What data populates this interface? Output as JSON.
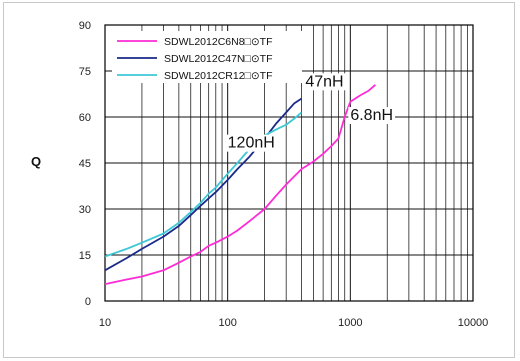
{
  "chart_data": {
    "type": "line",
    "ylabel": "Q",
    "xscale": "log",
    "xlim": [
      10,
      10000
    ],
    "ylim": [
      0,
      90
    ],
    "x_ticks": [
      10,
      100,
      1000,
      10000
    ],
    "x_tick_labels": [
      "10",
      "100",
      "1000",
      "10000"
    ],
    "y_ticks": [
      0,
      15,
      30,
      45,
      60,
      75,
      90
    ],
    "y_tick_labels": [
      "0",
      "15",
      "30",
      "45",
      "60",
      "75",
      "90"
    ],
    "grid": true,
    "legend_position": "top-left",
    "series": [
      {
        "name": "SDWL2012C6N8□⊙TF",
        "color": "#ff2bd6",
        "x": [
          10,
          15,
          20,
          30,
          40,
          50,
          60,
          70,
          80,
          100,
          120,
          150,
          200,
          250,
          300,
          400,
          500,
          600,
          700,
          800,
          900,
          1000,
          1200,
          1400,
          1600
        ],
        "y": [
          5.5,
          7,
          8,
          10,
          12.5,
          14.5,
          16,
          18,
          19,
          21,
          23,
          26,
          30,
          34.5,
          38,
          43,
          45.5,
          48,
          50.5,
          53,
          60,
          65,
          67,
          68.5,
          70.5
        ]
      },
      {
        "name": "SDWL2012C47N□⊙TF",
        "color": "#1a2a8a",
        "x": [
          10,
          15,
          20,
          30,
          40,
          50,
          60,
          70,
          80,
          100,
          120,
          150,
          200,
          250,
          300,
          350,
          400
        ],
        "y": [
          10,
          14,
          17,
          21,
          24.5,
          28,
          31,
          33.5,
          35.5,
          39.5,
          43,
          47,
          53,
          58,
          61.5,
          64.5,
          66
        ]
      },
      {
        "name": "SDWL2012CR12□⊙TF",
        "color": "#3cc8d6",
        "x": [
          10,
          15,
          20,
          30,
          40,
          50,
          60,
          70,
          80,
          100,
          120,
          150,
          200,
          250,
          300,
          350,
          400
        ],
        "y": [
          14.5,
          17,
          19,
          22,
          25.5,
          29,
          32,
          35,
          37,
          41.5,
          45,
          49.5,
          54,
          56,
          57.5,
          59.5,
          61.5
        ]
      }
    ],
    "annotations": [
      {
        "text": "120nH",
        "x": 100,
        "y": 50
      },
      {
        "text": "47nH",
        "x": 430,
        "y": 70
      },
      {
        "text": "6.8nH",
        "x": 1000,
        "y": 59
      }
    ]
  }
}
